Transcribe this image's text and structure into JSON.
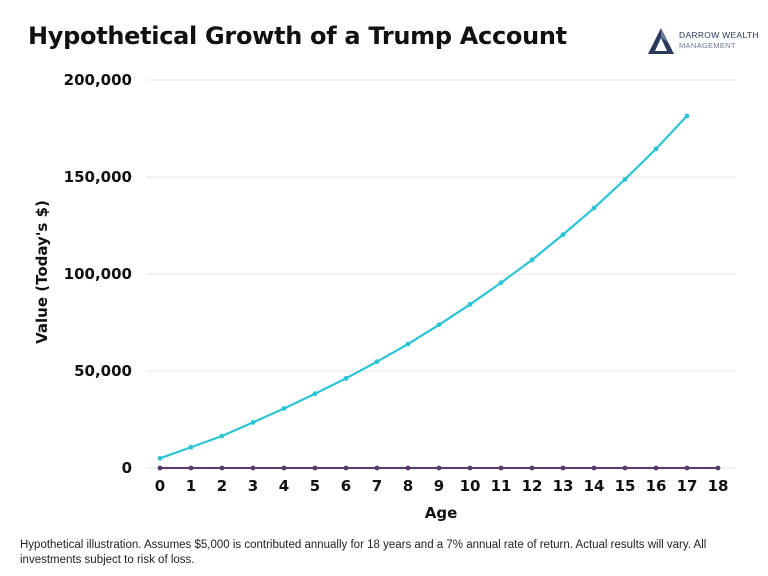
{
  "title": "Hypothetical Growth of a Trump Account",
  "logo": {
    "line1": "DARROW WEALTH",
    "line2": "MANAGEMENT",
    "icon": "triangle-logo-icon",
    "color": "#2a3a5c"
  },
  "footnote": "Hypothetical illustration. Assumes $5,000 is contributed annually for 18 years and a 7% annual rate of return. Actual results will vary. All investments subject to risk of loss.",
  "colors": {
    "series_growth": "#2cc4d4",
    "series_baseline": "#5b3a6e",
    "grid": "#e6e6e6"
  },
  "chart_data": {
    "type": "line",
    "title": "Hypothetical Growth of a Trump Account",
    "xlabel": "Age",
    "ylabel": "Value (Today's $)",
    "x": [
      0,
      1,
      2,
      3,
      4,
      5,
      6,
      7,
      8,
      9,
      10,
      11,
      12,
      13,
      14,
      15,
      16,
      17,
      18
    ],
    "ylim": [
      0,
      200000
    ],
    "yticks": [
      0,
      50000,
      100000,
      150000,
      200000
    ],
    "ytick_labels": [
      "0",
      "50,000",
      "100,000",
      "150,000",
      "200,000"
    ],
    "grid": true,
    "series": [
      {
        "values": [
          5000,
          10700,
          16500,
          23500,
          30700,
          38300,
          46200,
          54800,
          63900,
          73800,
          84300,
          95500,
          107300,
          120300,
          134000,
          148800,
          164500,
          181500,
          null
        ]
      },
      {
        "values": [
          0,
          0,
          0,
          0,
          0,
          0,
          0,
          0,
          0,
          0,
          0,
          0,
          0,
          0,
          0,
          0,
          0,
          0,
          0
        ]
      }
    ]
  }
}
